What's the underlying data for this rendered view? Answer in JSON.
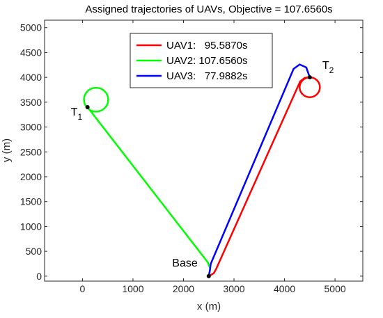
{
  "chart_data": {
    "type": "line",
    "title": "Assigned trajectories of UAVs, Objective = 107.6560s",
    "xlabel": "x (m)",
    "ylabel": "y (m)",
    "xlim": [
      -750,
      5550
    ],
    "ylim": [
      -100,
      5150
    ],
    "x_ticks": [
      0,
      1000,
      2000,
      3000,
      4000,
      5000
    ],
    "y_ticks": [
      0,
      500,
      1000,
      1500,
      2000,
      2500,
      3000,
      3500,
      4000,
      4500,
      5000
    ],
    "grid": false,
    "legend_position": "top-center",
    "series": [
      {
        "name": "UAV1:   95.5870s",
        "color": "#ff0000",
        "points": [
          [
            2500,
            0
          ],
          [
            2600,
            60
          ],
          [
            2650,
            150
          ],
          [
            4310,
            3920
          ],
          [
            4400,
            3990
          ],
          [
            4500,
            4000
          ]
        ],
        "loiter": {
          "cx": 4500,
          "cy": 3800,
          "r": 200
        }
      },
      {
        "name": "UAV2: 107.6560s",
        "color": "#00ff00",
        "points": [
          [
            2500,
            0
          ],
          [
            2530,
            150
          ],
          [
            2480,
            280
          ],
          [
            100,
            3400
          ]
        ],
        "loiter": {
          "cx": 270,
          "cy": 3550,
          "r": 240
        }
      },
      {
        "name": "UAV3:   77.9882s",
        "color": "#0000ff",
        "points": [
          [
            2500,
            0
          ],
          [
            2520,
            100
          ],
          [
            2540,
            250
          ],
          [
            4180,
            4170
          ],
          [
            4300,
            4260
          ],
          [
            4430,
            4200
          ],
          [
            4500,
            4000
          ]
        ]
      }
    ],
    "markers": [
      {
        "label": "Base",
        "x": 2500,
        "y": 0
      },
      {
        "label": "T",
        "sub": "1",
        "x": 100,
        "y": 3400
      },
      {
        "label": "T",
        "sub": "2",
        "x": 4500,
        "y": 4000
      }
    ]
  }
}
